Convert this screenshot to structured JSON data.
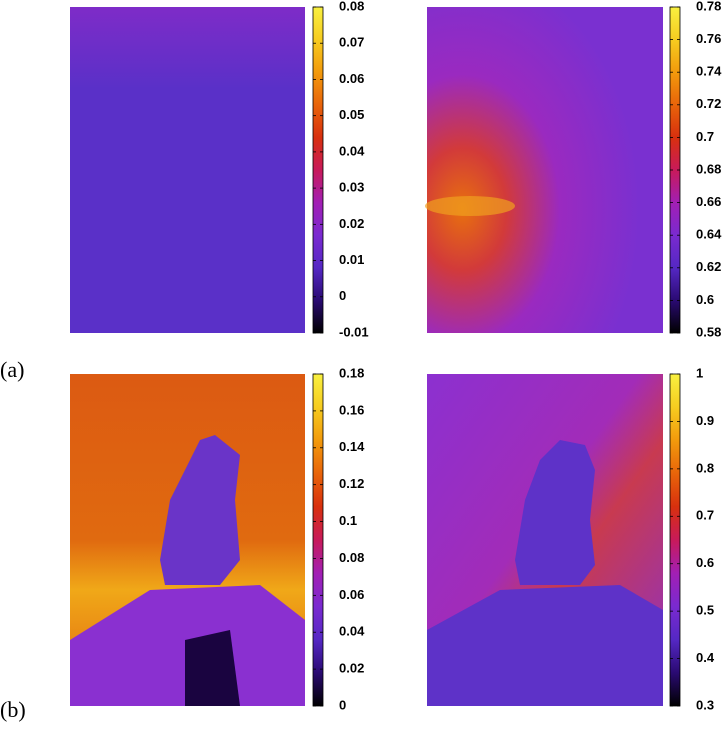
{
  "panel_labels": [
    "(a)",
    "(b)"
  ],
  "palette": [
    "#000000",
    "#2a0a72",
    "#5528c4",
    "#7a2ad0",
    "#a21fb4",
    "#c81a5a",
    "#d8300e",
    "#e8640a",
    "#f29a0c",
    "#f6cc20",
    "#f8f040"
  ],
  "chart_data": [
    {
      "type": "heatmap",
      "clim": [
        -0.01,
        0.08
      ],
      "cticks": [
        -0.01,
        0,
        0.01,
        0.02,
        0.03,
        0.04,
        0.05,
        0.06,
        0.07,
        0.08
      ]
    },
    {
      "type": "heatmap",
      "clim": [
        0.58,
        0.78
      ],
      "cticks": [
        0.58,
        0.6,
        0.62,
        0.64,
        0.66,
        0.68,
        0.7,
        0.72,
        0.74,
        0.76,
        0.78
      ]
    },
    {
      "type": "heatmap",
      "clim": [
        0,
        0.18
      ],
      "cticks": [
        0,
        0.02,
        0.04,
        0.06,
        0.08,
        0.1,
        0.12,
        0.14,
        0.16,
        0.18
      ]
    },
    {
      "type": "heatmap",
      "clim": [
        0.3,
        1
      ],
      "cticks": [
        0.3,
        0.4,
        0.5,
        0.6,
        0.7,
        0.8,
        0.9,
        1
      ]
    }
  ]
}
